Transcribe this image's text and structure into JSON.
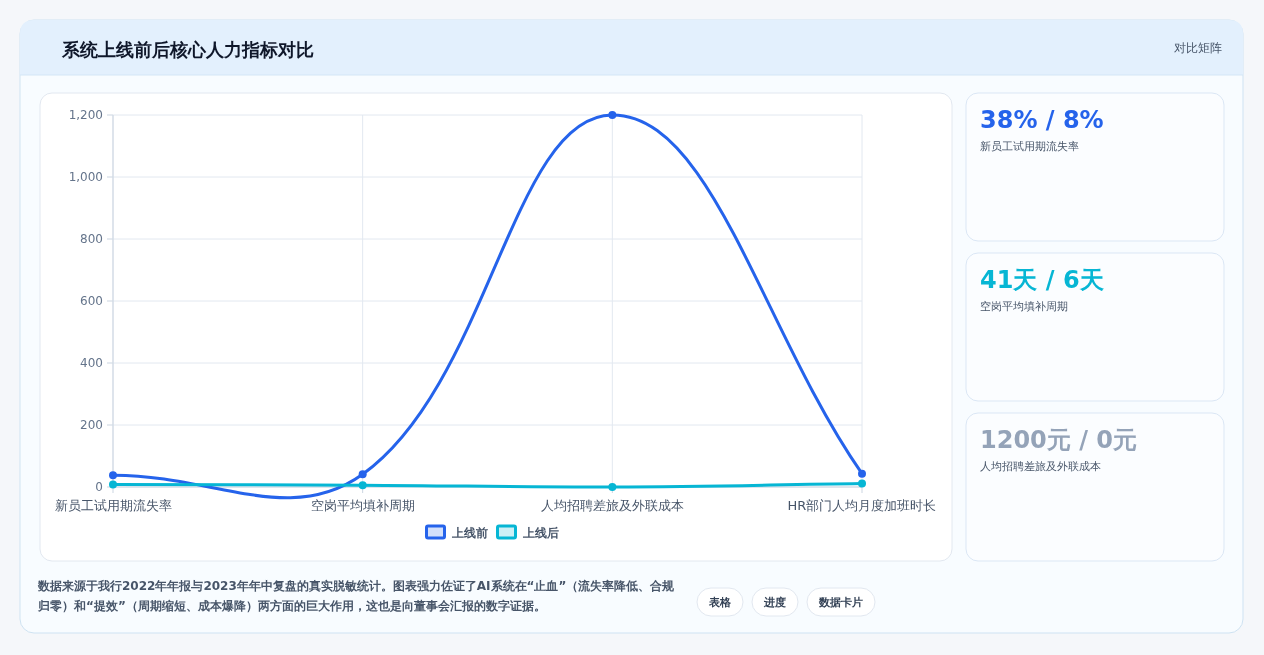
{
  "chart_data": [
    {
      "type": "line",
      "title": "系统上线前后核心人力指标对比",
      "categories": [
        "新员工试用期流失率",
        "空岗平均填补周期",
        "人均招聘差旅及外联成本",
        "HR部门人均月度加班时长"
      ],
      "series": [
        {
          "name": "上线前",
          "color": "#2563eb",
          "values": [
            38,
            41,
            1200,
            43
          ]
        },
        {
          "name": "上线后",
          "color": "#06b6d4",
          "values": [
            8,
            6,
            0,
            11
          ]
        }
      ],
      "ylim": [
        0,
        1200
      ],
      "yticks": [
        0,
        200,
        400,
        600,
        800,
        {
          "value": 1000,
          "label": "1,000"
        },
        {
          "value": 1200,
          "label": "1,200"
        }
      ],
      "grid": true,
      "legend": "bottom",
      "marker": "circle",
      "annotations": [
        "对比矩阵",
        "数据来源于我行2022年年报与2023年年中复盘的真实脱敏统计。图表强力佐证了AI系统在“止血”（流失率降低、合规归零）和“提效”（周期缩短、成本爆降）两方面的巨大作用，这也是向董事会汇报的数字证据。",
        "表格",
        "进度",
        "数据卡片"
      ]
    },
    {
      "type": "other",
      "title": "38% / 8%",
      "subtitle": "新员工试用期流失率",
      "color": "#2563eb"
    },
    {
      "type": "other",
      "title": "41天 / 6天",
      "subtitle": "空岗平均填补周期",
      "color": "#06b6d4"
    },
    {
      "type": "other",
      "title": "1200元 / 0元",
      "subtitle": "人均招聘差旅及外联成本",
      "color": "#94a3b8"
    }
  ]
}
